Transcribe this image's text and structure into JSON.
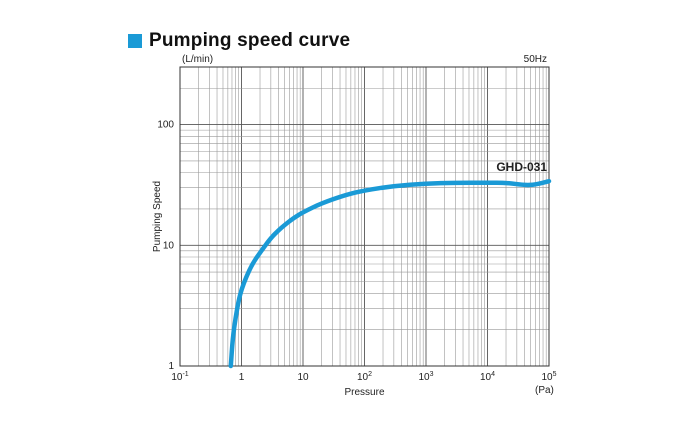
{
  "section": {
    "title": "Pumping speed curve",
    "accent_color": "#1a9ad6"
  },
  "chart_data": {
    "type": "line",
    "title": "Pumping speed curve",
    "xlabel": "Pressure",
    "ylabel": "Pumping Speed",
    "x_unit": "(Pa)",
    "y_unit": "(L/min)",
    "frequency_label": "50Hz",
    "x_scale": "log",
    "y_scale": "log",
    "xlim": [
      0.1,
      100000
    ],
    "ylim": [
      1,
      300
    ],
    "grid": true,
    "x_ticks": [
      {
        "value": 0.1,
        "base": "10",
        "exp": "-1"
      },
      {
        "value": 1,
        "base": "1",
        "exp": ""
      },
      {
        "value": 10,
        "base": "10",
        "exp": ""
      },
      {
        "value": 100,
        "base": "10",
        "exp": "2"
      },
      {
        "value": 1000,
        "base": "10",
        "exp": "3"
      },
      {
        "value": 10000,
        "base": "10",
        "exp": "4"
      },
      {
        "value": 100000,
        "base": "10",
        "exp": "5"
      }
    ],
    "y_ticks": [
      {
        "value": 1,
        "label": "1"
      },
      {
        "value": 10,
        "label": "10"
      },
      {
        "value": 100,
        "label": "100"
      }
    ],
    "series": [
      {
        "name": "GHD-031",
        "color": "#1a9ad6",
        "x": [
          0.67,
          0.72,
          0.8,
          0.9,
          1.0,
          1.2,
          1.5,
          2.0,
          3.0,
          4.0,
          5.0,
          7.0,
          10,
          20,
          50,
          100,
          300,
          1000,
          3000,
          10000,
          20000,
          40000,
          60000,
          100000
        ],
        "y": [
          1.0,
          1.7,
          2.5,
          3.5,
          4.3,
          5.5,
          7.0,
          8.7,
          11.5,
          13.3,
          14.7,
          16.8,
          18.8,
          22.3,
          26.2,
          28.5,
          31.0,
          32.5,
          33.0,
          33.0,
          33.0,
          31.5,
          31.8,
          34.0
        ]
      }
    ]
  }
}
